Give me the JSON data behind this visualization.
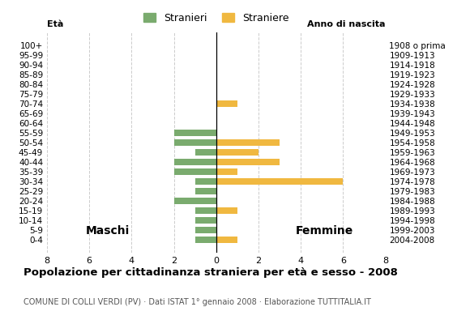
{
  "age_groups": [
    "100+",
    "95-99",
    "90-94",
    "85-89",
    "80-84",
    "75-79",
    "70-74",
    "65-69",
    "60-64",
    "55-59",
    "50-54",
    "45-49",
    "40-44",
    "35-39",
    "30-34",
    "25-29",
    "20-24",
    "15-19",
    "10-14",
    "5-9",
    "0-4"
  ],
  "birth_years": [
    "1908 o prima",
    "1909-1913",
    "1914-1918",
    "1919-1923",
    "1924-1928",
    "1929-1933",
    "1934-1938",
    "1939-1943",
    "1944-1948",
    "1949-1953",
    "1954-1958",
    "1959-1963",
    "1964-1968",
    "1969-1973",
    "1974-1978",
    "1979-1983",
    "1984-1988",
    "1989-1993",
    "1994-1998",
    "1999-2003",
    "2004-2008"
  ],
  "maschi_stranieri": [
    0,
    0,
    0,
    0,
    0,
    0,
    0,
    0,
    0,
    2,
    2,
    1,
    2,
    2,
    1,
    1,
    2,
    1,
    1,
    1,
    1
  ],
  "femmine_straniere": [
    0,
    0,
    0,
    0,
    0,
    0,
    1,
    0,
    0,
    0,
    3,
    2,
    3,
    1,
    6,
    0,
    0,
    1,
    0,
    0,
    1
  ],
  "color_maschi": "#7aab6e",
  "color_femmine": "#f0b840",
  "title": "Popolazione per cittadinanza straniera per età e sesso - 2008",
  "subtitle": "COMUNE DI COLLI VERDI (PV) · Dati ISTAT 1° gennaio 2008 · Elaborazione TUTTITALIA.IT",
  "label_maschi": "Maschi",
  "label_femmine": "Femmine",
  "ylabel_left": "Età",
  "ylabel_right": "Anno di nascita",
  "legend_maschi": "Stranieri",
  "legend_femmine": "Straniere",
  "xlim": 8,
  "background_color": "#ffffff",
  "grid_color": "#cccccc"
}
